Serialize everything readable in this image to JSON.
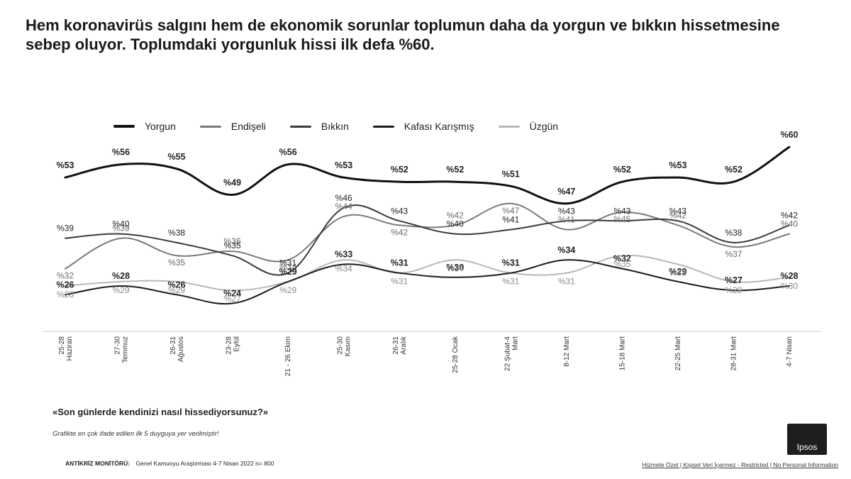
{
  "title": "Hem koronavirüs salgını hem de ekonomik sorunlar toplumun daha da yorgun ve bıkkın hissetmesine sebep oluyor. Toplumdaki yorgunluk hissi ilk defa %60.",
  "question": "«Son günlerde kendinizi nasıl hissediyorsunuz?»",
  "footnote": "Grafikte en çok ifade edilen ilk 5 duyguya yer verilmiştir!",
  "source_label": "ANTİKRİZ MONİTÖRÜ:",
  "source_text": "Genel Kamuoyu Araştırması 4-7 Nisan 2022 n= 800",
  "classification": "Hizmete Özel | Kişisel Veri İçermez - Restricted | No Personal Information",
  "logo_text": "Ipsos",
  "colors": {
    "yorgun": "#111111",
    "endiseli": "#7a7a7a",
    "bikkin": "#3a3a3a",
    "kafasi": "#1c1c1c",
    "uzgun": "#b8b8b8"
  },
  "chart_data": {
    "type": "line",
    "categories": [
      "25-28 Haziran",
      "27-30 Temmuz",
      "26-31 Ağustos",
      "23-28 Eylül",
      "21 - 26 Ekim",
      "25-30 Kasım",
      "26-31 Aralık",
      "25-28 Ocak",
      "22 Şubat-4 Mart",
      "8-12 Mart",
      "15-18 Mart",
      "22-25 Mart",
      "28-31 Mart",
      "4-7 Nisan"
    ],
    "series": [
      {
        "name": "Yorgun",
        "values": [
          53,
          56,
          55,
          49,
          56,
          53,
          52,
          52,
          51,
          47,
          52,
          53,
          52,
          60
        ]
      },
      {
        "name": "Endişeli",
        "values": [
          32,
          39,
          35,
          36,
          34,
          44,
          42,
          42,
          47,
          41,
          45,
          42,
          37,
          40
        ]
      },
      {
        "name": "Bıkkın",
        "values": [
          39,
          40,
          38,
          35,
          31,
          46,
          43,
          40,
          41,
          43,
          43,
          43,
          38,
          42
        ]
      },
      {
        "name": "Kafası Karışmış",
        "values": [
          26,
          28,
          26,
          24,
          29,
          33,
          31,
          30,
          31,
          34,
          32,
          29,
          27,
          28
        ]
      },
      {
        "name": "Üzgün",
        "values": [
          28,
          29,
          29,
          27,
          29,
          34,
          31,
          34,
          31,
          31,
          35,
          33,
          29,
          30
        ]
      }
    ],
    "ylim": [
      20,
      62
    ],
    "grid": false,
    "legend": "top"
  }
}
